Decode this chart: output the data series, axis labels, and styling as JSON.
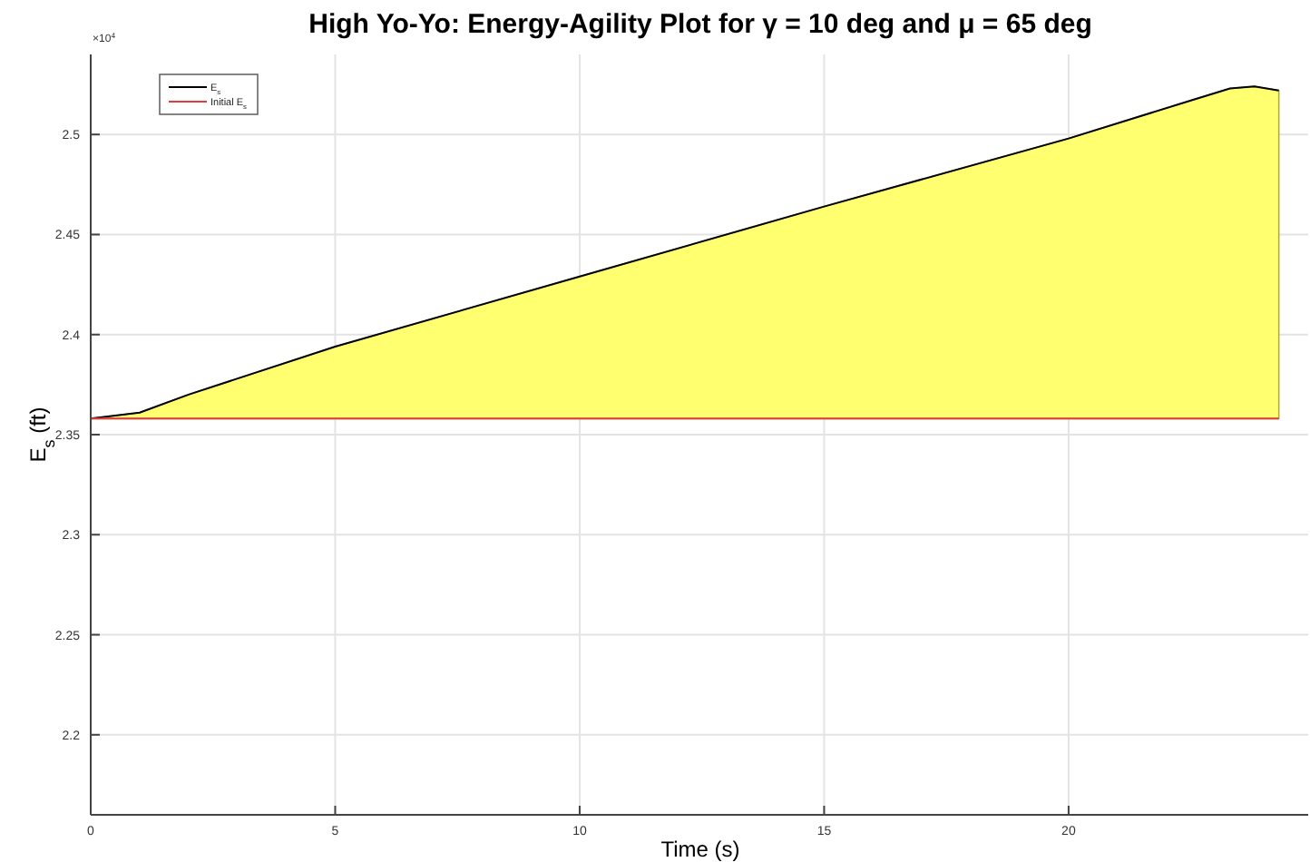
{
  "chart_data": {
    "type": "line",
    "title": "High Yo-Yo: Energy-Agility Plot for γ = 10 deg and μ = 65 deg",
    "xlabel": "Time (s)",
    "ylabel": "E$_{s}$ (ft)",
    "annotations": [
      "×10$^{4}$"
    ],
    "x": [
      0,
      1,
      2,
      5,
      10,
      15,
      20,
      22.5,
      23.3,
      23.8,
      24.3
    ],
    "series": [
      {
        "name": "E$_{s}$",
        "color": "#000000",
        "values": [
          2.358,
          2.361,
          2.37,
          2.394,
          2.429,
          2.464,
          2.498,
          2.517,
          2.523,
          2.524,
          2.522
        ],
        "lower": [
          2.358,
          2.358,
          2.358,
          2.358,
          2.358,
          2.358,
          2.358,
          2.358,
          2.358,
          2.358,
          2.358
        ],
        "upper": [
          2.358,
          2.361,
          2.37,
          2.394,
          2.429,
          2.464,
          2.498,
          2.517,
          2.523,
          2.524,
          2.522
        ]
      },
      {
        "name": "Initial E$_{s}$",
        "color": "#e03c3c",
        "values": [
          2.358,
          2.358,
          2.358,
          2.358,
          2.358,
          2.358,
          2.358,
          2.358,
          2.358,
          2.358,
          2.358
        ]
      }
    ],
    "xlim": [
      0,
      24.9
    ],
    "xticks": [
      0,
      5,
      10,
      15,
      20
    ],
    "ylim": [
      2.16,
      2.54
    ],
    "yticks": [
      2.2,
      2.25,
      2.3,
      2.35,
      2.4,
      2.45,
      2.5
    ],
    "grid": true,
    "legend": "top left",
    "line_style": "solid",
    "marker": "none"
  }
}
